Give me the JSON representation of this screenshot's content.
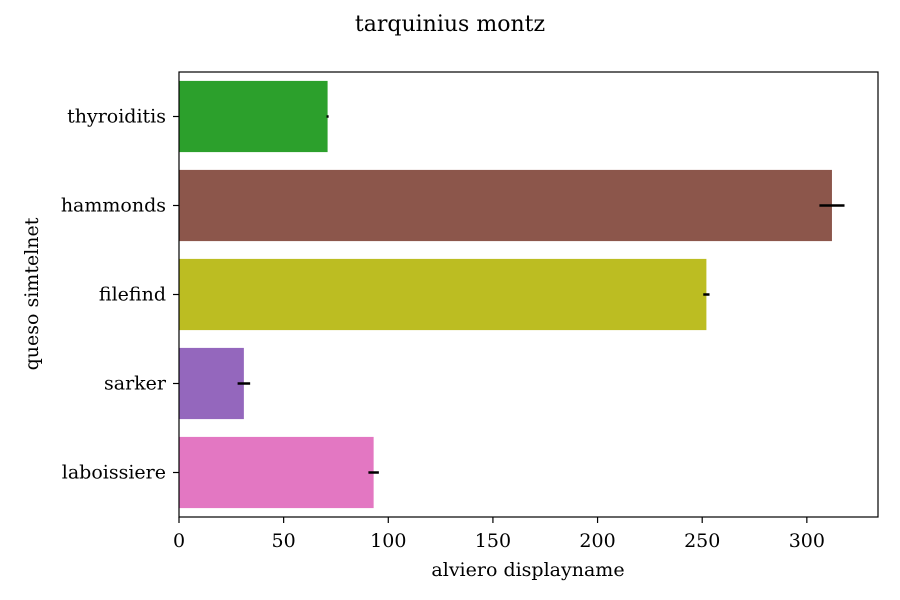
{
  "chart_data": {
    "type": "bar",
    "orientation": "horizontal",
    "title": "tarquinius montz",
    "xlabel": "alviero displayname",
    "ylabel": "queso simtelnet",
    "categories": [
      "thyroiditis",
      "hammonds",
      "filefind",
      "sarker",
      "laboissiere"
    ],
    "values": [
      71,
      312,
      252,
      31,
      93
    ],
    "errors": [
      0.5,
      6,
      1.5,
      3,
      2.5
    ],
    "colors": [
      "#2ca02c",
      "#8c564b",
      "#bcbd22",
      "#9467bd",
      "#e377c2"
    ],
    "xlim": [
      0,
      334
    ],
    "xticks": [
      0,
      50,
      100,
      150,
      200,
      250,
      300
    ],
    "grid": false,
    "legend": false
  }
}
